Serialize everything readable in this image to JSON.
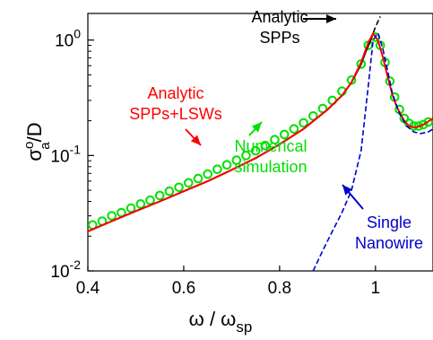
{
  "chart_data": {
    "type": "line",
    "xlabel": "ω / ω",
    "xlabel_sub": "sp",
    "ylabel_parts": {
      "sigma": "σ",
      "sup": "o",
      "sub": "a",
      "tail": "/D"
    },
    "xlim": [
      0.4,
      1.12
    ],
    "ylim": [
      0.01,
      1.7
    ],
    "yscale": "log",
    "x_ticks": [
      0.4,
      0.6,
      0.8,
      1.0
    ],
    "x_tick_labels": [
      "0.4",
      "0.6",
      "0.8",
      "1"
    ],
    "y_ticks": [
      0.01,
      0.1,
      1
    ],
    "y_tick_labels": [
      {
        "base": "10",
        "exp": "-2"
      },
      {
        "base": "10",
        "exp": "-1"
      },
      {
        "base": "10",
        "exp": "0"
      }
    ],
    "series": [
      {
        "color": "#00e000",
        "style": "markers",
        "x": [
          0.41,
          0.43,
          0.45,
          0.47,
          0.49,
          0.51,
          0.53,
          0.55,
          0.57,
          0.59,
          0.61,
          0.63,
          0.65,
          0.67,
          0.69,
          0.71,
          0.73,
          0.75,
          0.77,
          0.79,
          0.81,
          0.83,
          0.85,
          0.87,
          0.89,
          0.91,
          0.93,
          0.95,
          0.97,
          0.985,
          1.0,
          1.01,
          1.02,
          1.03,
          1.04,
          1.05,
          1.06,
          1.07,
          1.08,
          1.09,
          1.1,
          1.11
        ],
        "y": [
          0.025,
          0.027,
          0.03,
          0.032,
          0.035,
          0.038,
          0.041,
          0.045,
          0.049,
          0.053,
          0.058,
          0.063,
          0.069,
          0.076,
          0.083,
          0.091,
          0.1,
          0.11,
          0.122,
          0.137,
          0.152,
          0.17,
          0.192,
          0.22,
          0.255,
          0.3,
          0.36,
          0.45,
          0.62,
          0.9,
          1.06,
          0.9,
          0.64,
          0.44,
          0.32,
          0.25,
          0.21,
          0.19,
          0.18,
          0.18,
          0.185,
          0.195
        ]
      },
      {
        "color": "#000000",
        "style": "solid",
        "x": [
          0.4,
          0.45,
          0.5,
          0.55,
          0.6,
          0.65,
          0.7,
          0.75,
          0.8,
          0.85,
          0.9,
          0.93,
          0.95,
          0.97,
          0.98,
          0.99
        ],
        "y": [
          0.022,
          0.027,
          0.033,
          0.04,
          0.049,
          0.06,
          0.075,
          0.095,
          0.125,
          0.17,
          0.25,
          0.33,
          0.43,
          0.62,
          0.8,
          1.0
        ]
      },
      {
        "color": "#000000",
        "style": "dashed",
        "x": [
          0.99,
          1.0,
          1.01
        ],
        "y": [
          1.0,
          1.3,
          1.6
        ]
      },
      {
        "color": "#ff0000",
        "style": "solid",
        "x": [
          0.4,
          0.45,
          0.5,
          0.55,
          0.6,
          0.65,
          0.7,
          0.75,
          0.8,
          0.85,
          0.9,
          0.93,
          0.95,
          0.97,
          0.985,
          0.995,
          1.005,
          1.015,
          1.025,
          1.035,
          1.045,
          1.06,
          1.07,
          1.08,
          1.09,
          1.1,
          1.12
        ],
        "y": [
          0.022,
          0.027,
          0.033,
          0.04,
          0.049,
          0.06,
          0.075,
          0.095,
          0.125,
          0.17,
          0.25,
          0.33,
          0.43,
          0.64,
          0.95,
          1.14,
          1.0,
          0.72,
          0.49,
          0.34,
          0.26,
          0.2,
          0.18,
          0.175,
          0.178,
          0.185,
          0.21
        ]
      },
      {
        "color": "#0000cc",
        "style": "dashed",
        "x": [
          0.87,
          0.89,
          0.91,
          0.93,
          0.95,
          0.97,
          0.985,
          0.995,
          1.005,
          1.015,
          1.025,
          1.035,
          1.05,
          1.065,
          1.08,
          1.095,
          1.11,
          1.12
        ],
        "y": [
          0.01,
          0.015,
          0.022,
          0.032,
          0.05,
          0.11,
          0.4,
          1.0,
          1.15,
          0.85,
          0.55,
          0.35,
          0.23,
          0.18,
          0.16,
          0.155,
          0.16,
          0.17
        ]
      }
    ],
    "annotations": [
      {
        "lines": [
          "Analytic",
          "SPPs"
        ],
        "color": "#000000"
      },
      {
        "lines": [
          "Analytic",
          "SPPs+LSWs"
        ],
        "color": "#ff0000"
      },
      {
        "lines": [
          "Numerical",
          "simulation"
        ],
        "color": "#00e000"
      },
      {
        "lines": [
          "Single",
          "Nanowire"
        ],
        "color": "#0000cc"
      }
    ]
  }
}
